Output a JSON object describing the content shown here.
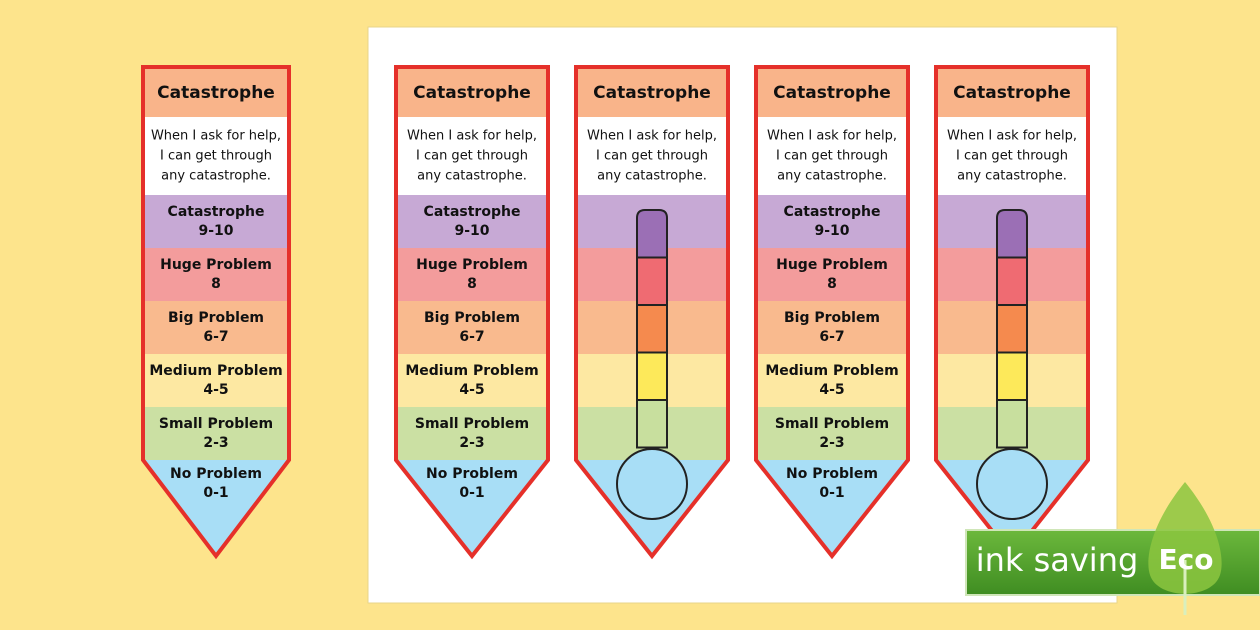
{
  "bookmark": {
    "title": "Catastrophe",
    "message": [
      "When I ask for help,",
      "I can get through",
      "any catastrophe."
    ],
    "levels": [
      {
        "name": "Catastrophe",
        "range": "9-10"
      },
      {
        "name": "Huge Problem",
        "range": "8"
      },
      {
        "name": "Big Problem",
        "range": "6-7"
      },
      {
        "name": "Medium Problem",
        "range": "4-5"
      },
      {
        "name": "Small Problem",
        "range": "2-3"
      },
      {
        "name": "No Problem",
        "range": "0-1"
      }
    ]
  },
  "badge": {
    "text": "ink saving",
    "label": "Eco"
  }
}
